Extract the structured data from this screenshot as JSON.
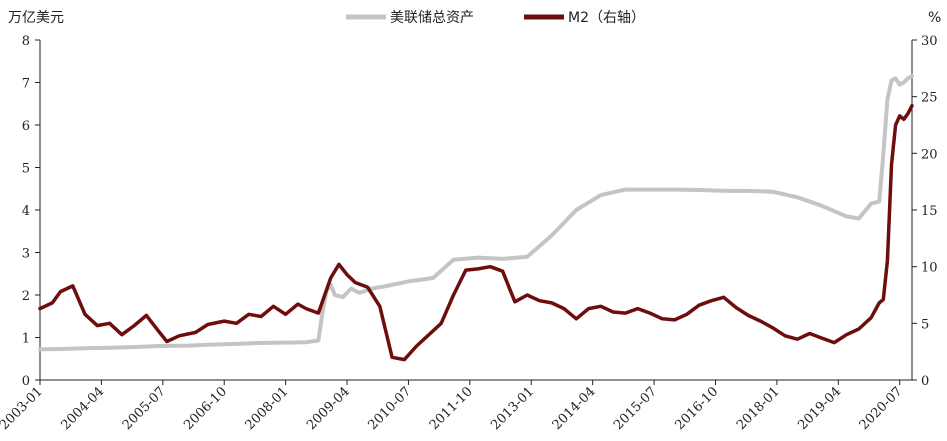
{
  "chart_data": {
    "type": "line",
    "title": "",
    "left_axis_unit": "万亿美元",
    "right_axis_unit": "%",
    "ylim_left": [
      0,
      8
    ],
    "ylim_right": [
      0,
      30
    ],
    "yticks_left": [
      "0",
      "1",
      "2",
      "3",
      "4",
      "5",
      "6",
      "7",
      "8"
    ],
    "yticks_right": [
      "0",
      "5",
      "10",
      "15",
      "20",
      "25",
      "30"
    ],
    "xticks": [
      "2003-01",
      "2004-04",
      "2005-07",
      "2006-10",
      "2008-01",
      "2009-04",
      "2010-07",
      "2011-10",
      "2013-01",
      "2014-04",
      "2015-07",
      "2016-10",
      "2018-01",
      "2019-04",
      "2020-07"
    ],
    "x_range": [
      "2003-01",
      "2020-10"
    ],
    "legend_position": "top-center",
    "grid": false,
    "series": [
      {
        "name": "美联储总资产",
        "axis": "left",
        "color": "#c4c4c4",
        "points": [
          [
            "2003-01",
            0.72
          ],
          [
            "2003-06",
            0.73
          ],
          [
            "2004-01",
            0.75
          ],
          [
            "2004-06",
            0.76
          ],
          [
            "2005-01",
            0.78
          ],
          [
            "2005-06",
            0.8
          ],
          [
            "2006-01",
            0.81
          ],
          [
            "2006-06",
            0.83
          ],
          [
            "2007-01",
            0.85
          ],
          [
            "2007-06",
            0.87
          ],
          [
            "2008-01",
            0.88
          ],
          [
            "2008-06",
            0.89
          ],
          [
            "2008-09",
            0.93
          ],
          [
            "2008-10",
            1.6
          ],
          [
            "2008-11",
            2.1
          ],
          [
            "2008-12",
            2.25
          ],
          [
            "2009-01",
            2.0
          ],
          [
            "2009-03",
            1.95
          ],
          [
            "2009-05",
            2.15
          ],
          [
            "2009-07",
            2.05
          ],
          [
            "2009-10",
            2.15
          ],
          [
            "2010-01",
            2.2
          ],
          [
            "2010-07",
            2.32
          ],
          [
            "2011-01",
            2.4
          ],
          [
            "2011-06",
            2.83
          ],
          [
            "2011-12",
            2.88
          ],
          [
            "2012-06",
            2.85
          ],
          [
            "2012-12",
            2.9
          ],
          [
            "2013-06",
            3.4
          ],
          [
            "2013-12",
            4.0
          ],
          [
            "2014-06",
            4.35
          ],
          [
            "2014-12",
            4.48
          ],
          [
            "2015-06",
            4.48
          ],
          [
            "2016-01",
            4.48
          ],
          [
            "2016-06",
            4.47
          ],
          [
            "2017-01",
            4.45
          ],
          [
            "2017-06",
            4.45
          ],
          [
            "2017-12",
            4.43
          ],
          [
            "2018-06",
            4.3
          ],
          [
            "2018-12",
            4.1
          ],
          [
            "2019-06",
            3.85
          ],
          [
            "2019-09",
            3.8
          ],
          [
            "2019-12",
            4.15
          ],
          [
            "2020-02",
            4.2
          ],
          [
            "2020-03",
            5.3
          ],
          [
            "2020-04",
            6.6
          ],
          [
            "2020-05",
            7.05
          ],
          [
            "2020-06",
            7.1
          ],
          [
            "2020-07",
            6.95
          ],
          [
            "2020-08",
            7.0
          ],
          [
            "2020-09",
            7.1
          ],
          [
            "2020-10",
            7.15
          ]
        ]
      },
      {
        "name": "M2（右轴）",
        "axis": "right",
        "color": "#6e0d0d",
        "points": [
          [
            "2003-01",
            6.3
          ],
          [
            "2003-04",
            6.8
          ],
          [
            "2003-06",
            7.8
          ],
          [
            "2003-09",
            8.3
          ],
          [
            "2003-12",
            5.8
          ],
          [
            "2004-03",
            4.8
          ],
          [
            "2004-06",
            5.0
          ],
          [
            "2004-09",
            4.0
          ],
          [
            "2004-12",
            4.8
          ],
          [
            "2005-03",
            5.7
          ],
          [
            "2005-06",
            4.3
          ],
          [
            "2005-08",
            3.4
          ],
          [
            "2005-11",
            3.9
          ],
          [
            "2006-03",
            4.2
          ],
          [
            "2006-06",
            4.9
          ],
          [
            "2006-10",
            5.2
          ],
          [
            "2007-01",
            5.0
          ],
          [
            "2007-04",
            5.8
          ],
          [
            "2007-07",
            5.6
          ],
          [
            "2007-10",
            6.5
          ],
          [
            "2008-01",
            5.8
          ],
          [
            "2008-04",
            6.7
          ],
          [
            "2008-06",
            6.3
          ],
          [
            "2008-09",
            5.9
          ],
          [
            "2008-12",
            9.0
          ],
          [
            "2009-02",
            10.2
          ],
          [
            "2009-04",
            9.3
          ],
          [
            "2009-06",
            8.6
          ],
          [
            "2009-09",
            8.2
          ],
          [
            "2009-12",
            6.5
          ],
          [
            "2010-03",
            2.0
          ],
          [
            "2010-06",
            1.8
          ],
          [
            "2010-09",
            3.0
          ],
          [
            "2010-12",
            4.0
          ],
          [
            "2011-03",
            5.0
          ],
          [
            "2011-06",
            7.5
          ],
          [
            "2011-09",
            9.7
          ],
          [
            "2011-12",
            9.8
          ],
          [
            "2012-03",
            10.0
          ],
          [
            "2012-06",
            9.6
          ],
          [
            "2012-09",
            6.9
          ],
          [
            "2012-12",
            7.5
          ],
          [
            "2013-03",
            7.0
          ],
          [
            "2013-06",
            6.8
          ],
          [
            "2013-09",
            6.3
          ],
          [
            "2013-12",
            5.4
          ],
          [
            "2014-03",
            6.3
          ],
          [
            "2014-06",
            6.5
          ],
          [
            "2014-09",
            6.0
          ],
          [
            "2014-12",
            5.9
          ],
          [
            "2015-03",
            6.3
          ],
          [
            "2015-06",
            5.9
          ],
          [
            "2015-09",
            5.4
          ],
          [
            "2015-12",
            5.3
          ],
          [
            "2016-03",
            5.8
          ],
          [
            "2016-06",
            6.6
          ],
          [
            "2016-09",
            7.0
          ],
          [
            "2016-12",
            7.3
          ],
          [
            "2017-03",
            6.4
          ],
          [
            "2017-06",
            5.7
          ],
          [
            "2017-09",
            5.2
          ],
          [
            "2017-12",
            4.6
          ],
          [
            "2018-03",
            3.9
          ],
          [
            "2018-06",
            3.6
          ],
          [
            "2018-09",
            4.1
          ],
          [
            "2018-12",
            3.7
          ],
          [
            "2019-03",
            3.3
          ],
          [
            "2019-06",
            4.0
          ],
          [
            "2019-09",
            4.5
          ],
          [
            "2019-12",
            5.5
          ],
          [
            "2020-02",
            6.8
          ],
          [
            "2020-03",
            7.1
          ],
          [
            "2020-04",
            10.5
          ],
          [
            "2020-05",
            19.0
          ],
          [
            "2020-06",
            22.5
          ],
          [
            "2020-07",
            23.3
          ],
          [
            "2020-08",
            23.0
          ],
          [
            "2020-09",
            23.5
          ],
          [
            "2020-10",
            24.2
          ]
        ]
      }
    ]
  }
}
